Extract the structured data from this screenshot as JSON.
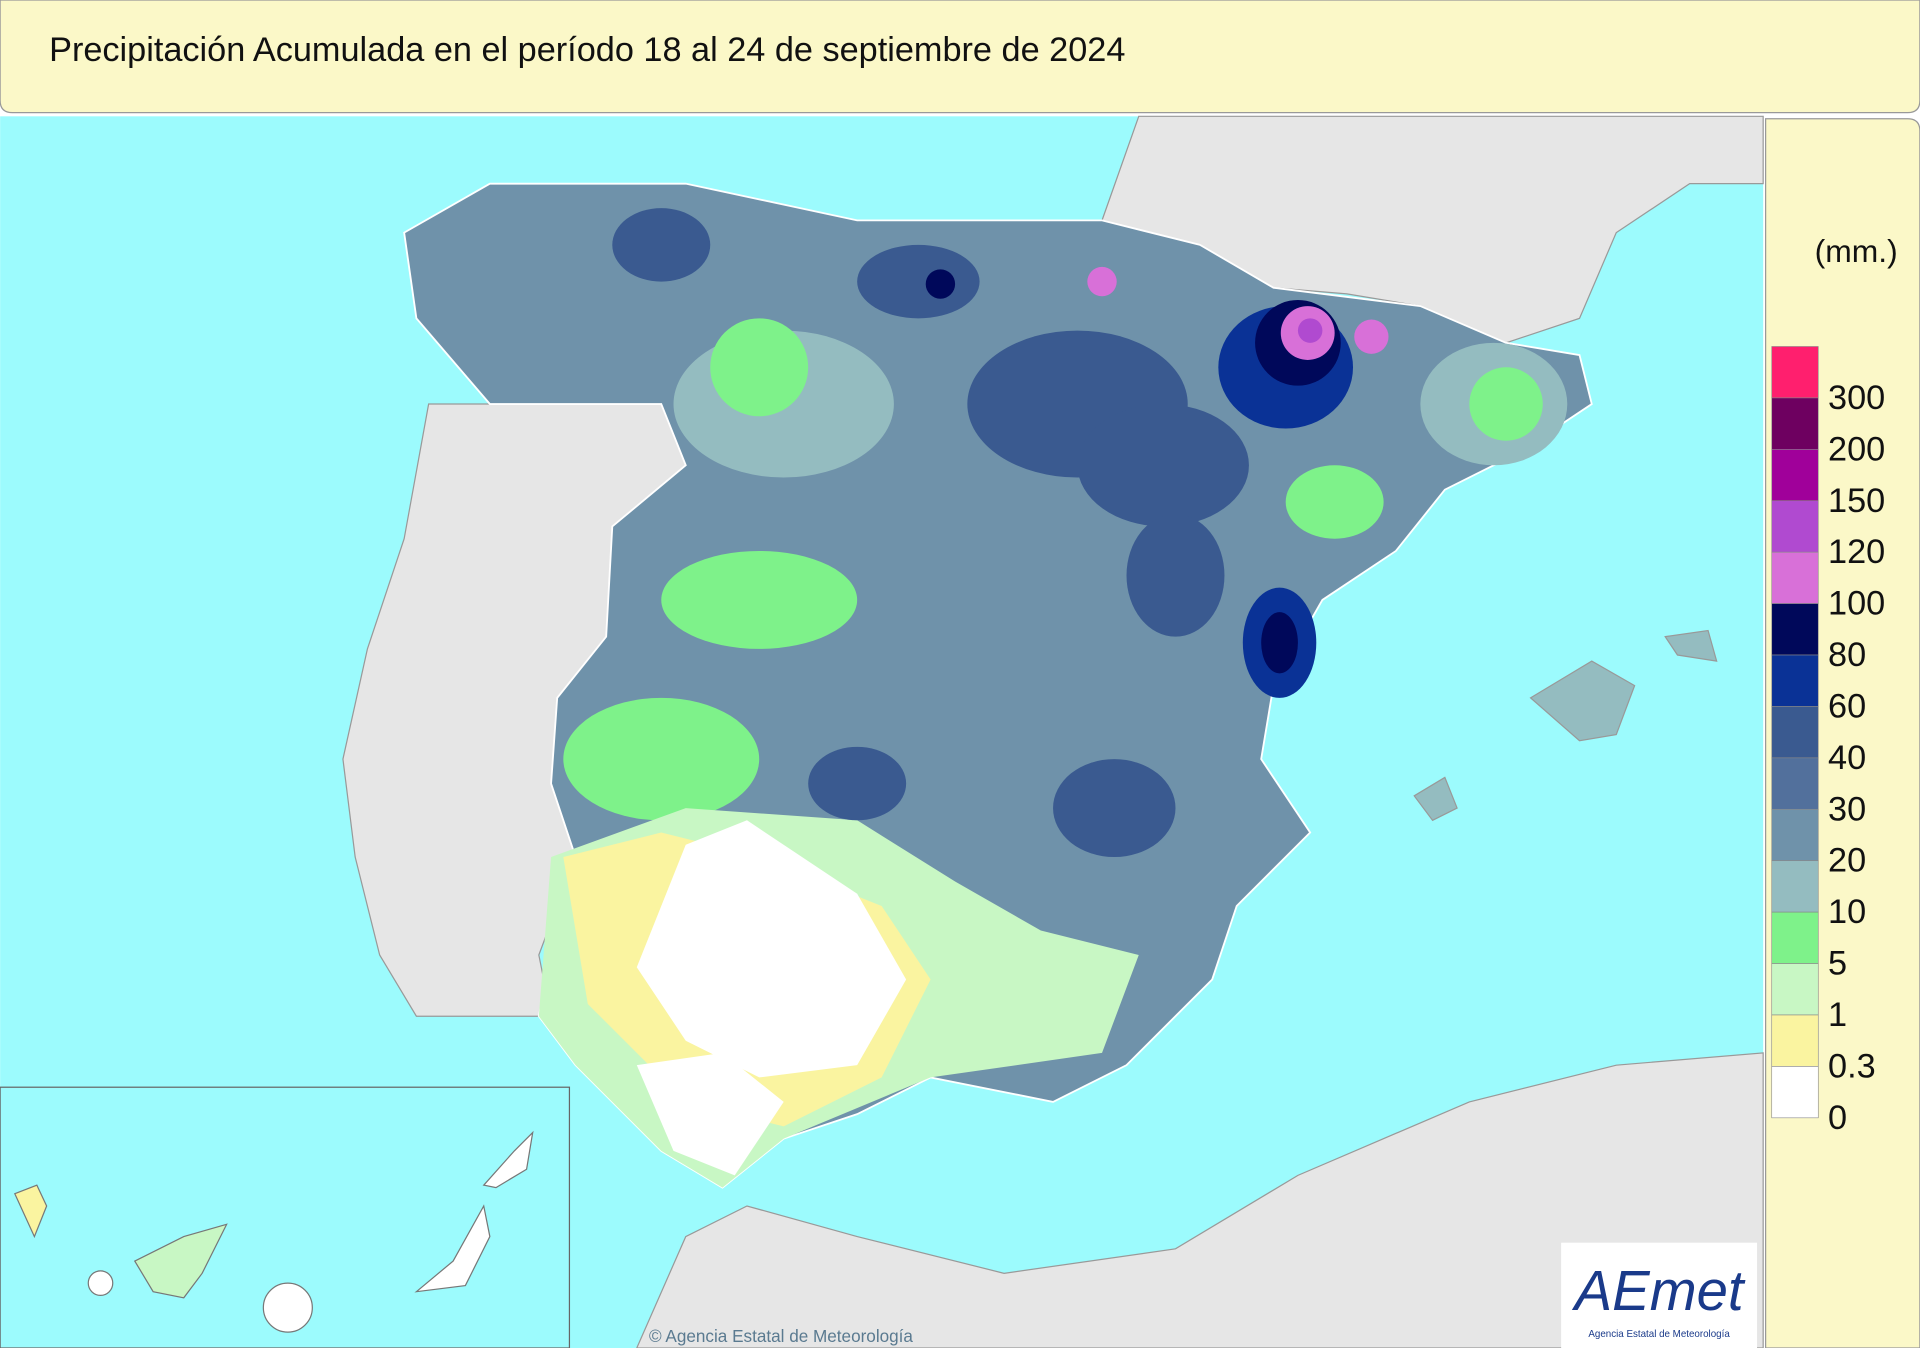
{
  "header": {
    "title": "Precipitación Acumulada en el período 18 al 24 de septiembre de 2024"
  },
  "legend": {
    "unit": "(mm.)",
    "labels": [
      300,
      200,
      150,
      120,
      100,
      80,
      60,
      40,
      30,
      20,
      10,
      5,
      1,
      0.3,
      0
    ],
    "colors": [
      "#ff1f6e",
      "#6e0060",
      "#a0009a",
      "#b04ad0",
      "#d870d8",
      "#00085a",
      "#0a3296",
      "#3a5a90",
      "#52709c",
      "#6f92aa",
      "#94bcc0",
      "#7ef28a",
      "#c8f7c4",
      "#faf4a0",
      "#ffffff"
    ]
  },
  "footer": {
    "credit": "© Agencia Estatal de Meteorología",
    "logo": "AEmet",
    "logo_subtitle": "Agencia Estatal de Meteorología"
  }
}
